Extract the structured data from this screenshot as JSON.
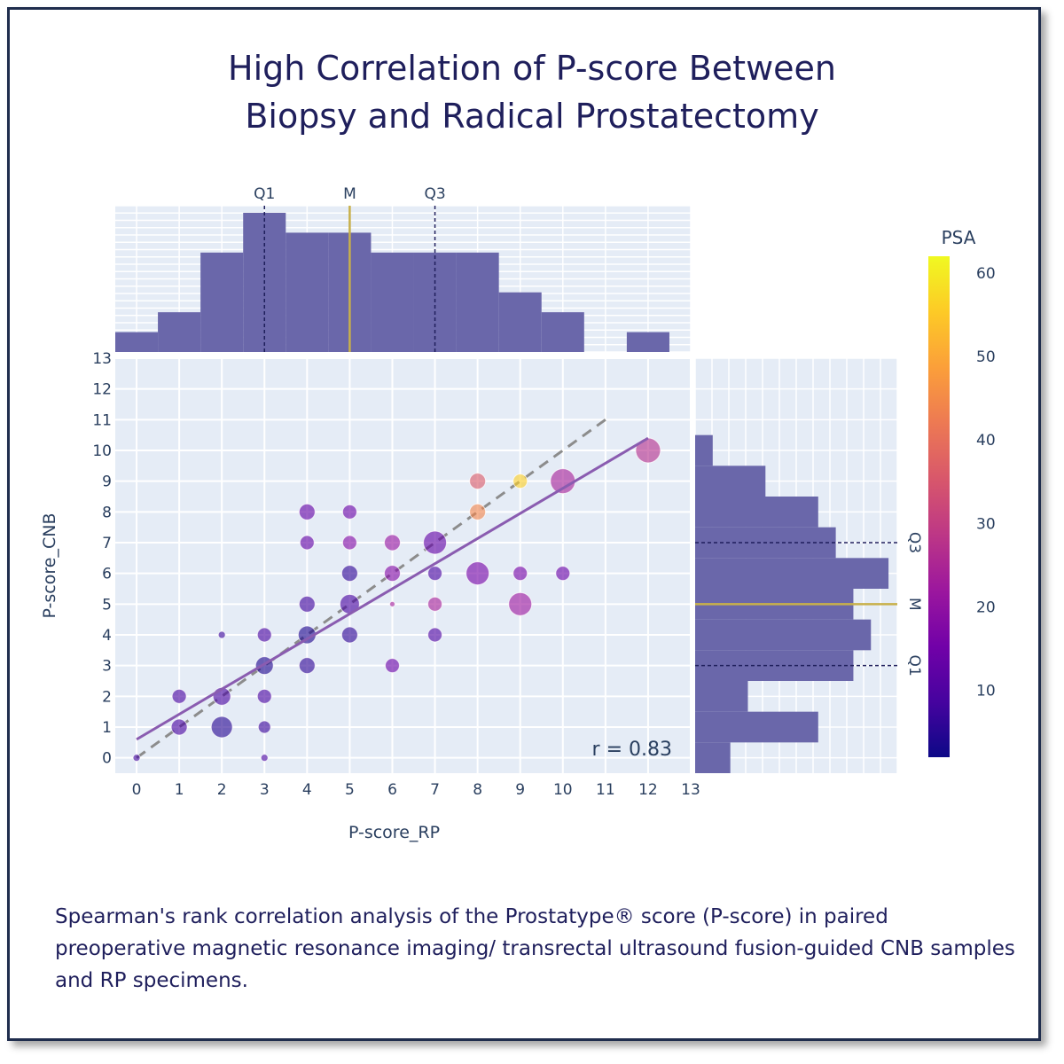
{
  "title_lines": [
    "High Correlation of P-score Between",
    "Biopsy and Radical Prostatectomy"
  ],
  "caption": "Spearman's rank correlation analysis of the Prostatype® score (P-score) in paired preoperative magnetic resonance imaging/ transrectal ultrasound fusion-guided CNB samples and RP specimens.",
  "colors": {
    "plot_bg": "#e5ecf6",
    "grid": "#ffffff",
    "hist_bar": "#6a67aa",
    "fit_line": "#8a5cb0",
    "identity_line": "#8c8c8c",
    "median_line": "#c8b04a",
    "quartile_line": "#1f1f5c"
  },
  "chart_data": {
    "type": "scatter",
    "xlabel": "P-score_RP",
    "ylabel": "P-score_CNB",
    "xlim": [
      -0.5,
      13
    ],
    "ylim": [
      -0.5,
      13
    ],
    "x_ticks": [
      0,
      1,
      2,
      3,
      4,
      5,
      6,
      7,
      8,
      9,
      10,
      11,
      12,
      13
    ],
    "y_ticks": [
      0,
      1,
      2,
      3,
      4,
      5,
      6,
      7,
      8,
      9,
      10,
      11,
      12,
      13
    ],
    "grid": true,
    "annotation": "r = 0.83",
    "fit_line": {
      "x": [
        0,
        12
      ],
      "y": [
        0.6,
        10.4
      ]
    },
    "identity_line": {
      "x": [
        0,
        11
      ],
      "y": [
        0,
        11
      ]
    },
    "colorbar": {
      "title": "PSA",
      "range": [
        2,
        62
      ],
      "ticks": [
        10,
        20,
        30,
        40,
        50,
        60
      ],
      "scale": [
        "#0d0887",
        "#46039f",
        "#7201a8",
        "#9c179e",
        "#bd3786",
        "#d8576b",
        "#ed7953",
        "#fb9f3a",
        "#fdca26",
        "#f0f921"
      ]
    },
    "points": [
      {
        "x": 0,
        "y": 0,
        "psa": 8,
        "size": 4
      },
      {
        "x": 1,
        "y": 2,
        "psa": 9,
        "size": 8
      },
      {
        "x": 1,
        "y": 1,
        "psa": 9,
        "size": 9
      },
      {
        "x": 2,
        "y": 4,
        "psa": 7,
        "size": 4
      },
      {
        "x": 2,
        "y": 2,
        "psa": 9,
        "size": 10
      },
      {
        "x": 2,
        "y": 1,
        "psa": 5,
        "size": 12
      },
      {
        "x": 3,
        "y": 4,
        "psa": 9,
        "size": 8
      },
      {
        "x": 3,
        "y": 3,
        "psa": 4,
        "size": 10
      },
      {
        "x": 3,
        "y": 2,
        "psa": 9,
        "size": 8
      },
      {
        "x": 3,
        "y": 1,
        "psa": 7,
        "size": 7
      },
      {
        "x": 3,
        "y": 0,
        "psa": 9,
        "size": 4
      },
      {
        "x": 4,
        "y": 8,
        "psa": 13,
        "size": 9
      },
      {
        "x": 4,
        "y": 7,
        "psa": 13,
        "size": 8
      },
      {
        "x": 4,
        "y": 5,
        "psa": 8,
        "size": 9
      },
      {
        "x": 4,
        "y": 4,
        "psa": 4,
        "size": 10
      },
      {
        "x": 4,
        "y": 3,
        "psa": 6,
        "size": 9
      },
      {
        "x": 5,
        "y": 8,
        "psa": 14,
        "size": 8
      },
      {
        "x": 5,
        "y": 7,
        "psa": 18,
        "size": 8
      },
      {
        "x": 5,
        "y": 6,
        "psa": 6,
        "size": 9
      },
      {
        "x": 5,
        "y": 5,
        "psa": 9,
        "size": 11
      },
      {
        "x": 5,
        "y": 4,
        "psa": 6,
        "size": 9
      },
      {
        "x": 6,
        "y": 7,
        "psa": 21,
        "size": 9
      },
      {
        "x": 6,
        "y": 6,
        "psa": 18,
        "size": 9
      },
      {
        "x": 6,
        "y": 5,
        "psa": 23,
        "size": 3
      },
      {
        "x": 6,
        "y": 3,
        "psa": 14,
        "size": 8
      },
      {
        "x": 7,
        "y": 7,
        "psa": 13,
        "size": 13
      },
      {
        "x": 7,
        "y": 6,
        "psa": 9,
        "size": 8
      },
      {
        "x": 7,
        "y": 5,
        "psa": 24,
        "size": 8
      },
      {
        "x": 7,
        "y": 4,
        "psa": 10,
        "size": 8
      },
      {
        "x": 8,
        "y": 9,
        "psa": 36,
        "size": 9
      },
      {
        "x": 8,
        "y": 8,
        "psa": 44,
        "size": 9
      },
      {
        "x": 8,
        "y": 6,
        "psa": 16,
        "size": 13
      },
      {
        "x": 9,
        "y": 9,
        "psa": 56,
        "size": 8
      },
      {
        "x": 9,
        "y": 6,
        "psa": 16,
        "size": 8
      },
      {
        "x": 9,
        "y": 5,
        "psa": 22,
        "size": 13
      },
      {
        "x": 10,
        "y": 9,
        "psa": 24,
        "size": 14
      },
      {
        "x": 10,
        "y": 6,
        "psa": 14,
        "size": 8
      },
      {
        "x": 12,
        "y": 10,
        "psa": 27,
        "size": 14
      }
    ],
    "hist_top": {
      "bins": [
        [
          -0.5,
          0.5
        ],
        [
          0.5,
          1.5
        ],
        [
          1.5,
          2.5
        ],
        [
          2.5,
          3.5
        ],
        [
          3.5,
          4.5
        ],
        [
          4.5,
          5.5
        ],
        [
          5.5,
          6.5
        ],
        [
          6.5,
          7.5
        ],
        [
          7.5,
          8.5
        ],
        [
          8.5,
          9.5
        ],
        [
          9.5,
          10.5
        ],
        [
          11.5,
          12.5
        ]
      ],
      "counts": [
        1,
        2,
        5,
        7,
        6,
        6,
        5,
        5,
        5,
        3,
        2,
        1
      ],
      "count_max": 7,
      "markers": [
        {
          "label": "Q1",
          "value": 3,
          "kind": "quartile"
        },
        {
          "label": "M",
          "value": 5,
          "kind": "median"
        },
        {
          "label": "Q3",
          "value": 7,
          "kind": "quartile"
        }
      ]
    },
    "hist_right": {
      "bins": [
        [
          -0.5,
          0.5
        ],
        [
          0.5,
          1.5
        ],
        [
          1.5,
          2.5
        ],
        [
          2.5,
          3.5
        ],
        [
          3.5,
          4.5
        ],
        [
          4.5,
          5.5
        ],
        [
          5.5,
          6.5
        ],
        [
          6.5,
          7.5
        ],
        [
          7.5,
          8.5
        ],
        [
          8.5,
          9.5
        ],
        [
          9.5,
          10.5
        ]
      ],
      "counts": [
        2,
        7,
        3,
        9,
        10,
        9,
        11,
        8,
        7,
        4,
        1
      ],
      "count_max": 11.5,
      "markers": [
        {
          "label": "Q1",
          "value": 3,
          "kind": "quartile"
        },
        {
          "label": "M",
          "value": 5,
          "kind": "median"
        },
        {
          "label": "Q3",
          "value": 7,
          "kind": "quartile"
        }
      ]
    }
  }
}
